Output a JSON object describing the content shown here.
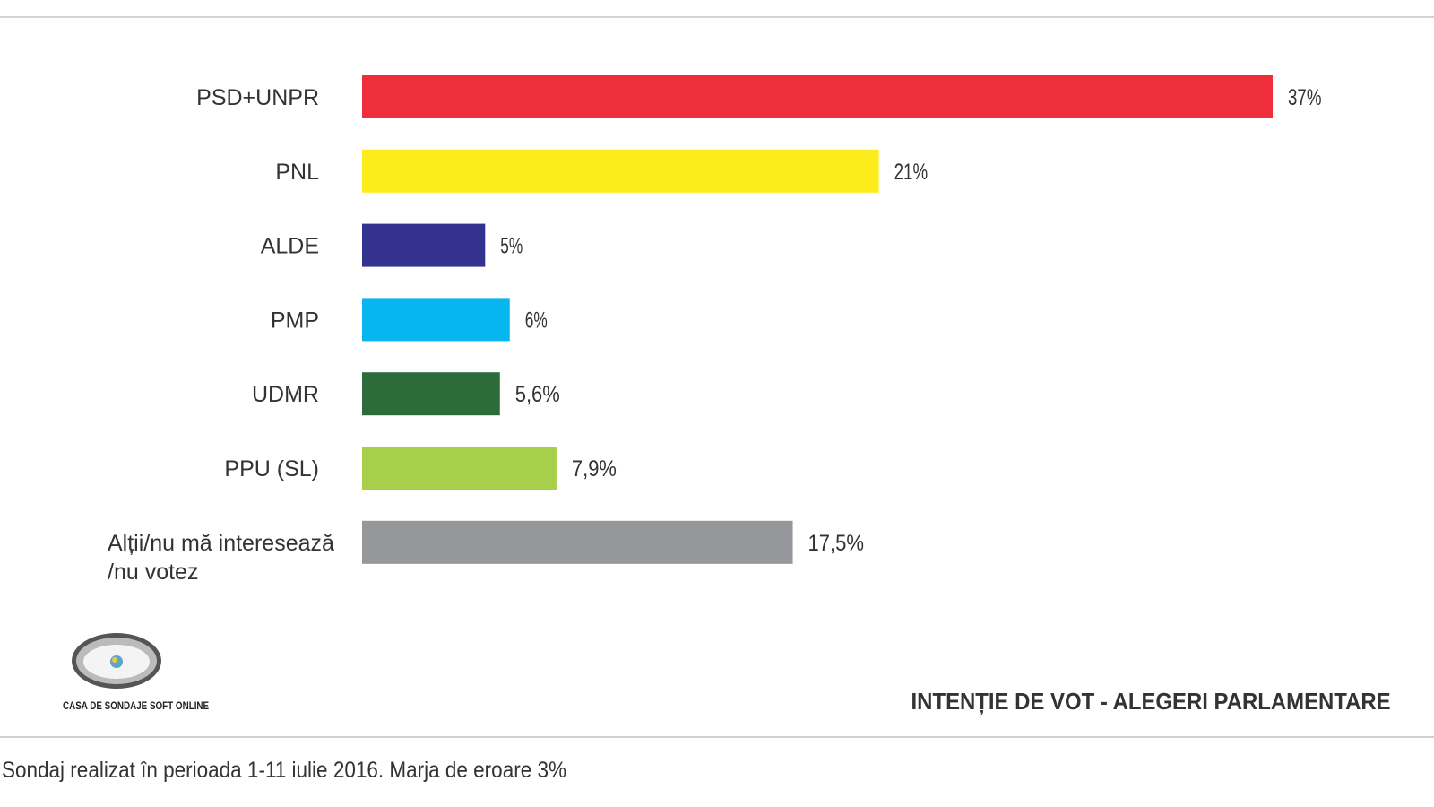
{
  "chart_data": {
    "type": "bar",
    "orientation": "horizontal",
    "title": "INTENȚIE DE VOT - ALEGERI PARLAMENTARE",
    "categories": [
      "PSD+UNPR",
      "PNL",
      "ALDE",
      "PMP",
      "UDMR",
      "PPU (SL)",
      "Alții/nu mă interesează /nu votez"
    ],
    "category_lines": [
      [
        "PSD+UNPR"
      ],
      [
        "PNL"
      ],
      [
        "ALDE"
      ],
      [
        "PMP"
      ],
      [
        "UDMR"
      ],
      [
        "PPU (SL)"
      ],
      [
        "Alții/nu mă interesează",
        "/nu votez"
      ]
    ],
    "values": [
      37,
      21,
      5,
      6,
      5.6,
      7.9,
      17.5
    ],
    "value_labels": [
      "37%",
      "21%",
      "5%",
      "6%",
      "5,6%",
      "7,9%",
      "17,5%"
    ],
    "colors": [
      "#ee2e3a",
      "#fdec1c",
      "#33338f",
      "#07b6ef",
      "#2e6b3a",
      "#a7cf4a",
      "#96979a"
    ],
    "xlabel": "",
    "ylabel": "",
    "xlim": [
      0,
      37
    ],
    "grid": false
  },
  "logo": {
    "text": "CASA DE SONDAJE SOFT ONLINE"
  },
  "footer": {
    "note": "Sondaj realizat în perioada 1-11 iulie 2016. Marja de eroare 3%"
  }
}
